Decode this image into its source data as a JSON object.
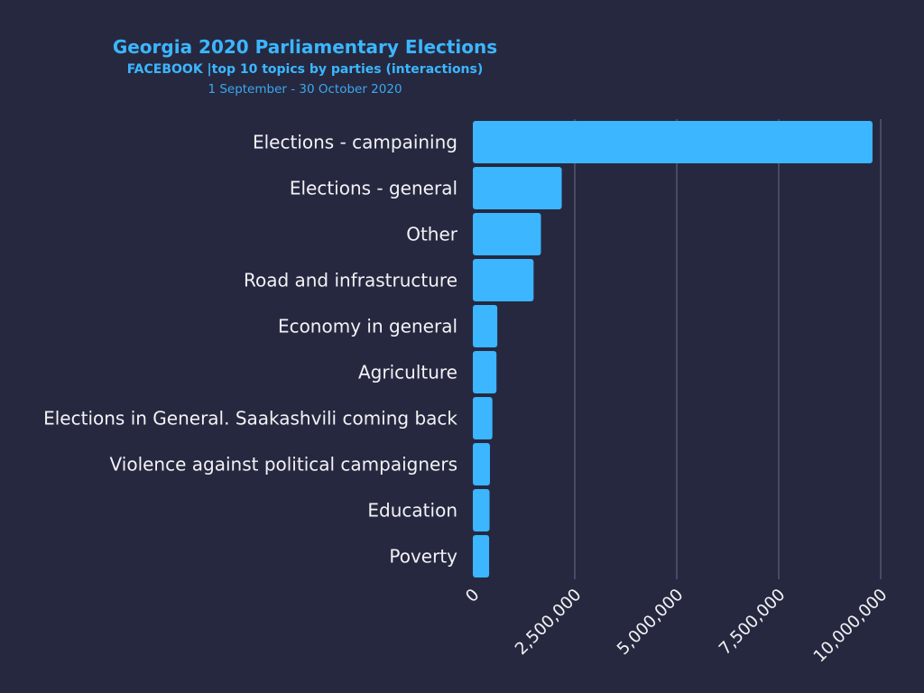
{
  "header": {
    "title": "Georgia 2020 Parliamentary Elections",
    "subtitle": "FACEBOOK |top 10 topics by parties (interactions)",
    "daterange": "1 September - 30 October 2020"
  },
  "colors": {
    "background": "#262840",
    "bar": "#3bb6ff",
    "title": "#3bb6ff",
    "gridline": "#6a6c82",
    "label": "#f2f2f5"
  },
  "chart_data": {
    "type": "bar",
    "orientation": "horizontal",
    "title": "Georgia 2020 Parliamentary Elections",
    "subtitle": "FACEBOOK |top 10 topics by parties (interactions)",
    "categories": [
      "Elections - campaining",
      "Elections - general",
      "Other",
      "Road and infrastructure",
      "Economy in general",
      "Agriculture",
      "Elections in General. Saakashvili coming back",
      "Violence against political campaigners",
      "Education",
      "Poverty"
    ],
    "values": [
      9800000,
      2180000,
      1670000,
      1490000,
      600000,
      580000,
      480000,
      420000,
      410000,
      400000
    ],
    "xlim": [
      0,
      10000000
    ],
    "xticks": [
      0,
      2500000,
      5000000,
      7500000,
      10000000
    ],
    "xtick_labels": [
      "0",
      "2,500,000",
      "5,000,000",
      "7,500,000",
      "10,000,000"
    ],
    "xlabel": "",
    "ylabel": "",
    "grid": "vertical",
    "legend": "none"
  }
}
